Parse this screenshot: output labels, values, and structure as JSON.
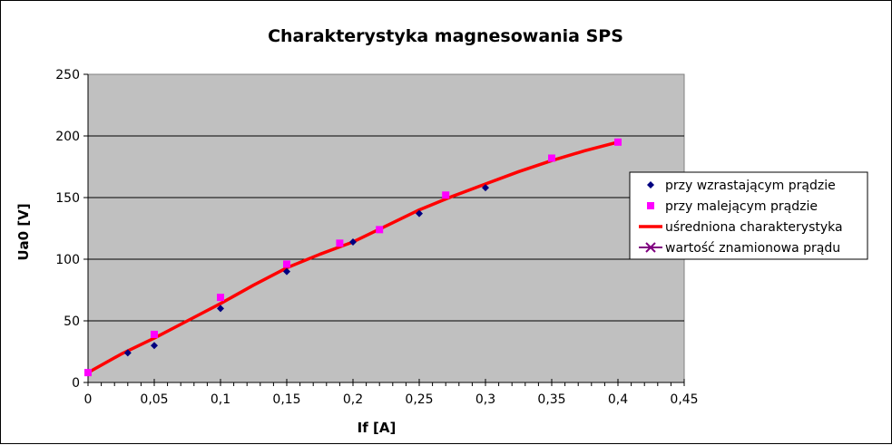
{
  "chart_data": {
    "type": "scatter",
    "title": "Charakterystyka magnesowania SPS",
    "xlabel": "If [A]",
    "ylabel": "Ua0 [V]",
    "xlim": [
      0,
      0.45
    ],
    "ylim": [
      0,
      250
    ],
    "x_ticks": [
      "0",
      "0,05",
      "0,1",
      "0,15",
      "0,2",
      "0,25",
      "0,3",
      "0,35",
      "0,4",
      "0,45"
    ],
    "y_ticks": [
      "0",
      "50",
      "100",
      "150",
      "200",
      "250"
    ],
    "grid": "horizontal major",
    "plot_background": "#c0c0c0",
    "legend_position": "right",
    "series": [
      {
        "name": "przy wzrastającym prądzie",
        "kind": "scatter",
        "marker": "diamond",
        "color": "#000080",
        "x": [
          0,
          0.03,
          0.05,
          0.1,
          0.15,
          0.2,
          0.25,
          0.3,
          0.4
        ],
        "y": [
          8,
          24,
          30,
          60,
          90,
          114,
          137,
          158,
          195
        ]
      },
      {
        "name": "przy malejącym prądzie",
        "kind": "scatter",
        "marker": "square",
        "color": "#ff00ff",
        "x": [
          0,
          0.05,
          0.1,
          0.15,
          0.19,
          0.22,
          0.27,
          0.35,
          0.4
        ],
        "y": [
          8,
          39,
          69,
          96,
          113,
          124,
          152,
          182,
          195
        ]
      },
      {
        "name": "uśredniona charakterystyka",
        "kind": "line",
        "color": "#ff0000",
        "x": [
          0,
          0.025,
          0.05,
          0.075,
          0.1,
          0.125,
          0.15,
          0.175,
          0.2,
          0.225,
          0.25,
          0.275,
          0.3,
          0.325,
          0.35,
          0.375,
          0.4
        ],
        "y": [
          8,
          23,
          36,
          50,
          64,
          79,
          93,
          104,
          114,
          127,
          140,
          151,
          161,
          171,
          180,
          188,
          195
        ]
      },
      {
        "name": "wartość znamionowa prądu",
        "kind": "marker",
        "marker": "cross",
        "color": "#800080",
        "x": [],
        "y": []
      }
    ]
  }
}
